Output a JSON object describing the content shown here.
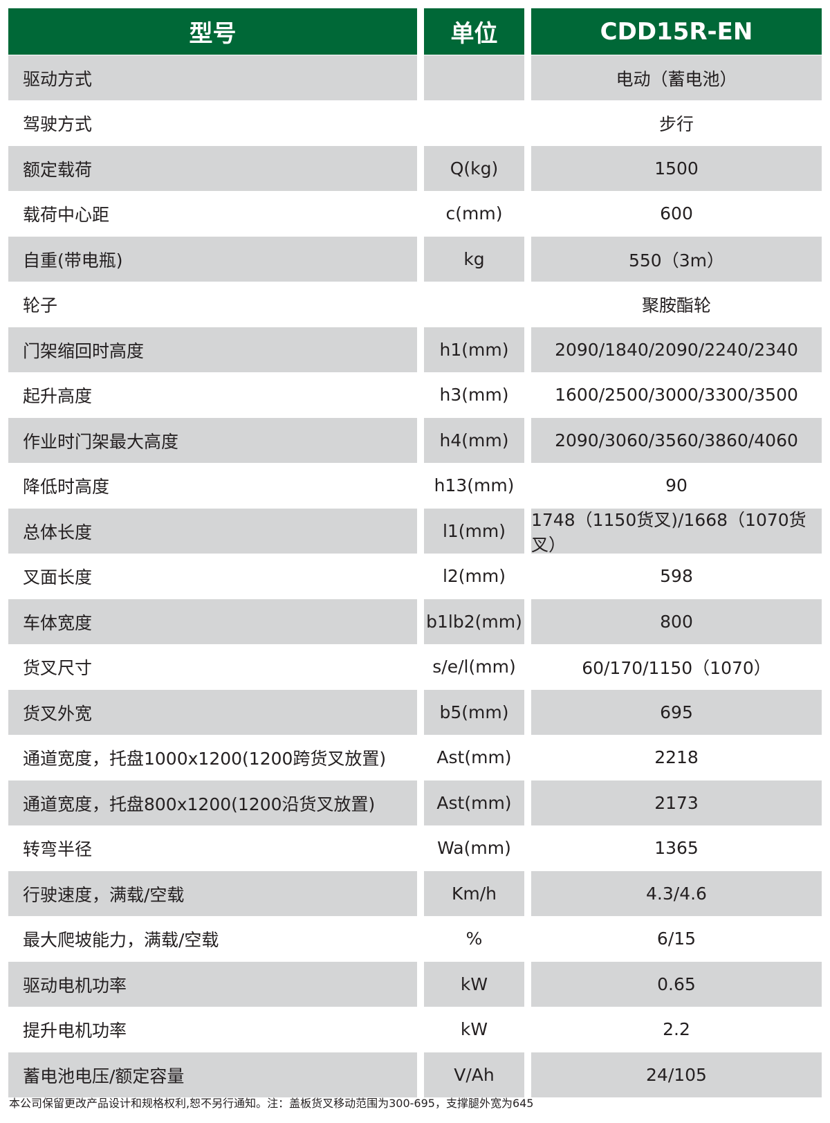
{
  "header": {
    "model_label": "型号",
    "unit_label": "单位",
    "model_value": "CDD15R-EN"
  },
  "colors": {
    "header_bg": "#006837",
    "stripe_bg": "#d4d5d6"
  },
  "rows": [
    {
      "name": "驱动方式",
      "unit": "",
      "value": "电动（蓄电池）"
    },
    {
      "name": "驾驶方式",
      "unit": "",
      "value": "步行"
    },
    {
      "name": "额定载荷",
      "unit": "Q(kg)",
      "value": "1500"
    },
    {
      "name": "载荷中心距",
      "unit": "c(mm)",
      "value": "600"
    },
    {
      "name": "自重(带电瓶)",
      "unit": "kg",
      "value": "550（3m）"
    },
    {
      "name": "轮子",
      "unit": "",
      "value": "聚胺酯轮"
    },
    {
      "name": "门架缩回时高度",
      "unit": "h1(mm)",
      "value": "2090/1840/2090/2240/2340"
    },
    {
      "name": "起升高度",
      "unit": "h3(mm)",
      "value": "1600/2500/3000/3300/3500"
    },
    {
      "name": "作业时门架最大高度",
      "unit": "h4(mm)",
      "value": "2090/3060/3560/3860/4060"
    },
    {
      "name": "降低时高度",
      "unit": "h13(mm)",
      "value": "90"
    },
    {
      "name": "总体长度",
      "unit": "l1(mm)",
      "value": "1748（1150货叉)/1668（1070货叉）"
    },
    {
      "name": "叉面长度",
      "unit": "l2(mm)",
      "value": "598"
    },
    {
      "name": "车体宽度",
      "unit": "b1lb2(mm)",
      "value": "800"
    },
    {
      "name": "货叉尺寸",
      "unit": "s/e/l(mm)",
      "value": "60/170/1150（1070）"
    },
    {
      "name": "货叉外宽",
      "unit": "b5(mm)",
      "value": "695"
    },
    {
      "name": "通道宽度，托盘1000x1200(1200跨货叉放置)",
      "unit": "Ast(mm)",
      "value": "2218"
    },
    {
      "name": "通道宽度，托盘800x1200(1200沿货叉放置)",
      "unit": "Ast(mm)",
      "value": "2173"
    },
    {
      "name": "转弯半径",
      "unit": "Wa(mm)",
      "value": "1365"
    },
    {
      "name": "行驶速度，满载/空载",
      "unit": "Km/h",
      "value": "4.3/4.6"
    },
    {
      "name": "最大爬坡能力，满载/空载",
      "unit": "%",
      "value": "6/15"
    },
    {
      "name": "驱动电机功率",
      "unit": "kW",
      "value": "0.65"
    },
    {
      "name": "提升电机功率",
      "unit": "kW",
      "value": "2.2"
    },
    {
      "name": "蓄电池电压/额定容量",
      "unit": "V/Ah",
      "value": "24/105"
    }
  ],
  "footer": "本公司保留更改产品设计和规格权利,恕不另行通知。注：盖板货叉移动范围为300-695，支撑腿外宽为645"
}
